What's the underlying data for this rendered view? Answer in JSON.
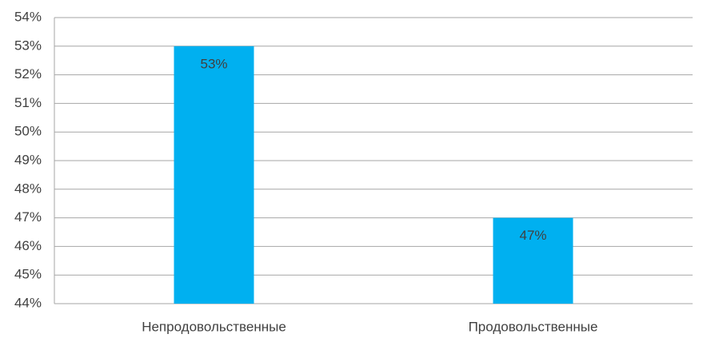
{
  "chart_data": {
    "type": "bar",
    "categories": [
      "Непродовольственные",
      "Продовольственные"
    ],
    "values": [
      53,
      47
    ],
    "value_labels": [
      "53%",
      "47%"
    ],
    "color": "#00b0f0",
    "ylim": [
      44,
      54
    ],
    "yticks": [
      {
        "value": 44,
        "label": "44%"
      },
      {
        "value": 45,
        "label": "45%"
      },
      {
        "value": 46,
        "label": "46%"
      },
      {
        "value": 47,
        "label": "47%"
      },
      {
        "value": 48,
        "label": "48%"
      },
      {
        "value": 49,
        "label": "49%"
      },
      {
        "value": 50,
        "label": "50%"
      },
      {
        "value": 51,
        "label": "51%"
      },
      {
        "value": 52,
        "label": "52%"
      },
      {
        "value": 53,
        "label": "53%"
      },
      {
        "value": 54,
        "label": "54%"
      }
    ],
    "grid": true
  }
}
